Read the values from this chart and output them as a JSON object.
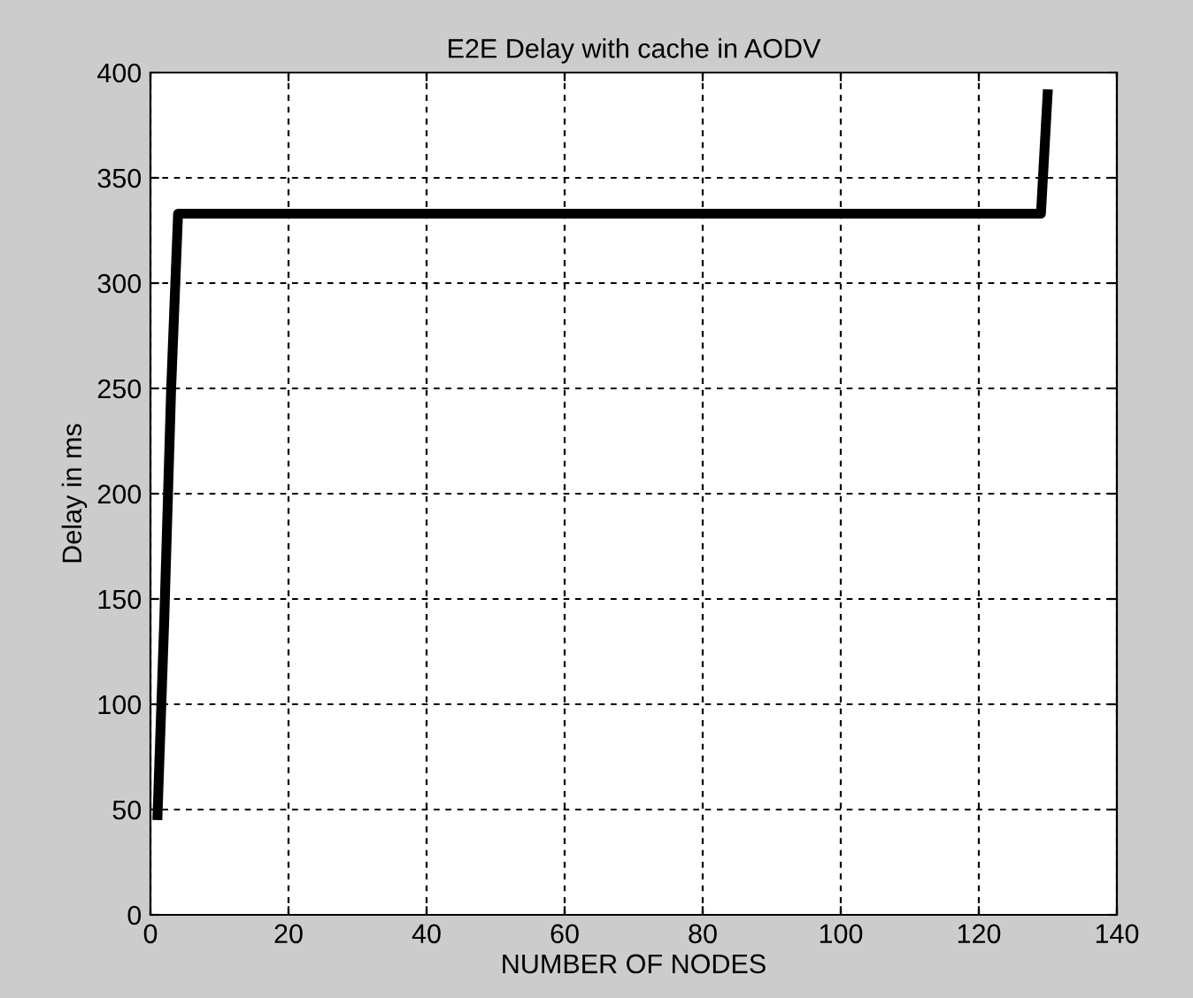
{
  "chart_data": {
    "type": "line",
    "title": "E2E Delay with cache in AODV",
    "xlabel": "NUMBER OF NODES",
    "ylabel": "Delay in ms",
    "x": [
      1,
      2,
      3,
      4,
      129,
      130
    ],
    "series": [
      {
        "color": "#000000",
        "values": [
          45,
          140,
          250,
          333,
          333,
          392
        ]
      }
    ],
    "xlim": [
      0,
      140
    ],
    "ylim": [
      0,
      400
    ],
    "xticks": [
      0,
      20,
      40,
      60,
      80,
      100,
      120,
      140
    ],
    "yticks": [
      0,
      50,
      100,
      150,
      200,
      250,
      300,
      350,
      400
    ],
    "grid": true,
    "line_style": "solid"
  }
}
